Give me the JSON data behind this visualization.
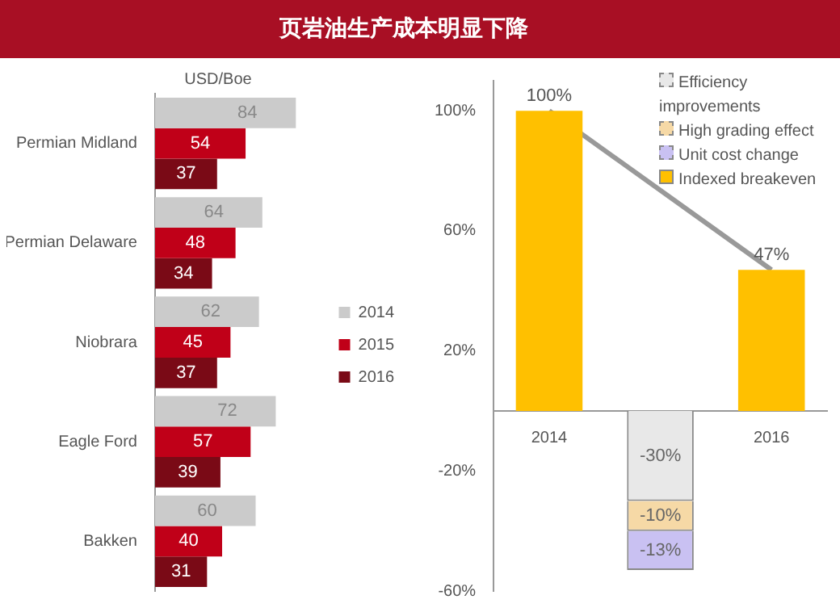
{
  "chart_data": [
    {
      "type": "bar",
      "orientation": "horizontal",
      "title": "页岩油生产成本明显下降",
      "subtitle": "USD/Boe",
      "categories": [
        "Permian Midland",
        "Permian Delaware",
        "Niobrara",
        "Eagle Ford",
        "Bakken"
      ],
      "series": [
        {
          "name": "2014",
          "color": "#cbcbcb",
          "values": [
            84,
            64,
            62,
            72,
            60
          ]
        },
        {
          "name": "2015",
          "color": "#c00018",
          "values": [
            54,
            48,
            45,
            57,
            40
          ]
        },
        {
          "name": "2016",
          "color": "#7a0a16",
          "values": [
            37,
            34,
            37,
            39,
            31
          ]
        }
      ],
      "data_labels": true,
      "legend": "right",
      "grid": false
    },
    {
      "type": "bar",
      "stacked": true,
      "categories": [
        "2014",
        null,
        "2016"
      ],
      "ylim": [
        -60,
        110
      ],
      "yticks": [
        {
          "value": -60,
          "label": "-60%"
        },
        {
          "value": -20,
          "label": "-20%"
        },
        {
          "value": 20,
          "label": "20%"
        },
        {
          "value": 60,
          "label": "60%"
        },
        {
          "value": 100,
          "label": "100%"
        }
      ],
      "series": [
        {
          "name": "Efficiency improvements",
          "color": "#e8e8e8",
          "values": [
            null,
            -30,
            null
          ],
          "value_labels": [
            null,
            "-30%",
            null
          ],
          "line_style": "dashed"
        },
        {
          "name": "High grading effect",
          "color": "#f6d9a6",
          "values": [
            null,
            -10,
            null
          ],
          "value_labels": [
            null,
            "-10%",
            null
          ],
          "line_style": "dashed"
        },
        {
          "name": "Unit cost change",
          "color": "#c9c1f2",
          "values": [
            null,
            -13,
            null
          ],
          "value_labels": [
            null,
            "-13%",
            null
          ],
          "line_style": "dashed"
        },
        {
          "name": "Indexed breakeven",
          "color": "#ffc000",
          "values": [
            100,
            null,
            47
          ],
          "value_labels": [
            "100%",
            null,
            "47%"
          ]
        },
        {
          "type": "line",
          "color": "#999999",
          "values": [
            100,
            null,
            47
          ]
        }
      ],
      "legend": "top right",
      "grid": false
    }
  ]
}
